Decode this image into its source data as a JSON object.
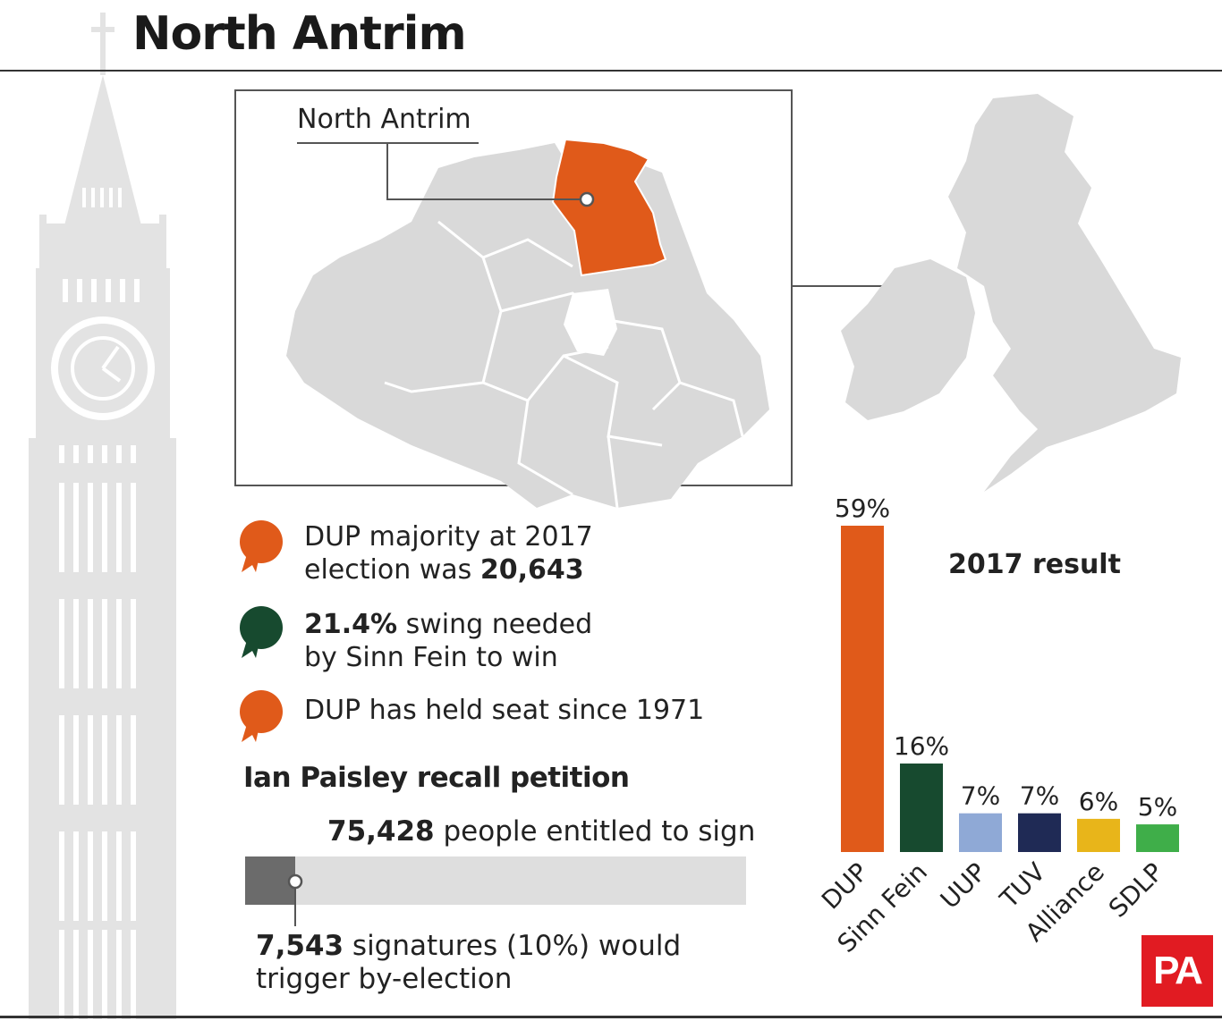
{
  "title": "North Antrim",
  "map": {
    "label": "North Antrim",
    "highlight_color": "#e05a1a",
    "land_color": "#d9d9d9"
  },
  "facts": [
    {
      "pre": "DUP majority at 2017",
      "line2_pre": "election was ",
      "bold": "20,643",
      "icon": "rosette-icon",
      "color": "#e05a1a"
    },
    {
      "bold": "21.4%",
      "post": " swing needed",
      "line2": "by Sinn Fein to win",
      "icon": "rosette-icon",
      "color": "#174a2f"
    },
    {
      "text": "DUP has held seat since 1971",
      "icon": "rosette-icon",
      "color": "#e05a1a"
    }
  ],
  "petition": {
    "title": "Ian Paisley recall petition",
    "entitled_bold": "75,428",
    "entitled_text": " people entitled to sign",
    "threshold_bold": "7,543",
    "threshold_text": " signatures (10%) would",
    "threshold_line2": "trigger by-election",
    "entitled_value": 75428,
    "threshold_value": 7543,
    "threshold_fraction": 0.1
  },
  "chart_data": {
    "type": "bar",
    "title": "2017 result",
    "categories": [
      "DUP",
      "Sinn Fein",
      "UUP",
      "TUV",
      "Alliance",
      "SDLP"
    ],
    "values": [
      59,
      16,
      7,
      7,
      6,
      5
    ],
    "value_labels": [
      "59%",
      "16%",
      "7%",
      "7%",
      "6%",
      "5%"
    ],
    "colors": [
      "#e05a1a",
      "#174a2f",
      "#8fa9d6",
      "#1f2a55",
      "#e8b51a",
      "#3fae49"
    ],
    "ylim": [
      0,
      59
    ]
  },
  "logo": "PA"
}
